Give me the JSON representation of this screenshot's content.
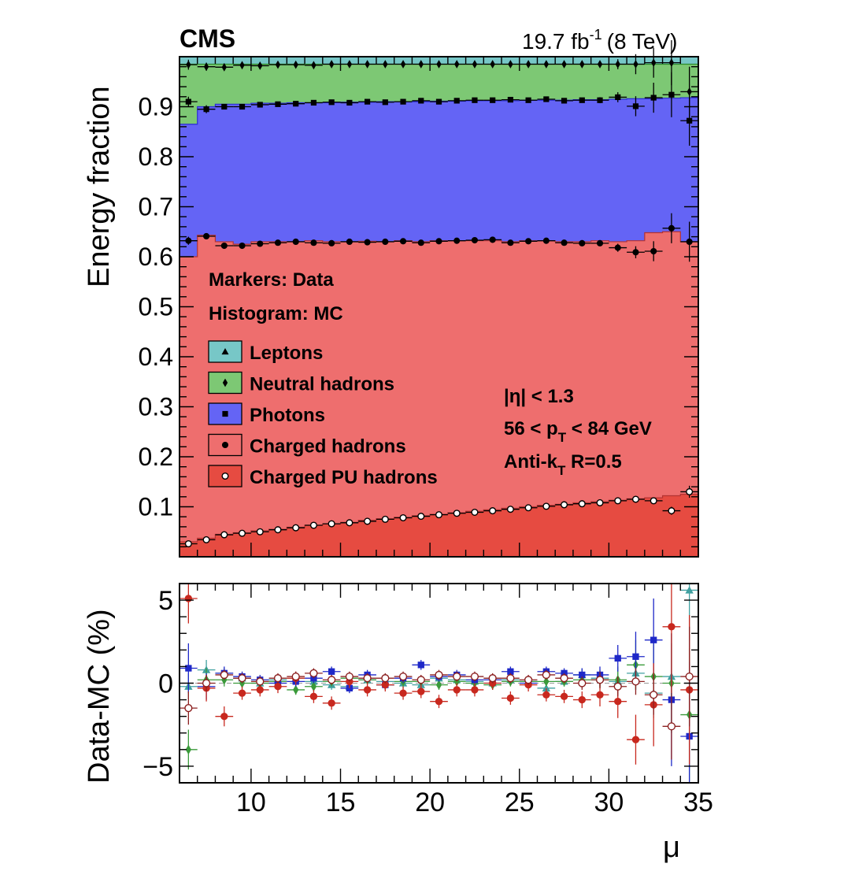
{
  "header": {
    "experiment": "CMS",
    "lumi": "19.7 fb",
    "lumi_exp": "-1",
    "energy": "(8 TeV)"
  },
  "annotations": {
    "markers": "Markers: Data",
    "histogram": "Histogram: MC",
    "eta_cut": "|η| < 1.3",
    "pt_cut_a": "56 < p",
    "pt_cut_sub": "T",
    "pt_cut_b": " < 84 GeV",
    "algo_a": "Anti-k",
    "algo_sub": "T",
    "algo_b": " R=0.5"
  },
  "legend": [
    {
      "label": "Leptons",
      "color": "#77C7C7",
      "marker": "triangle"
    },
    {
      "label": "Neutral hadrons",
      "color": "#7DC874",
      "marker": "diamond"
    },
    {
      "label": "Photons",
      "color": "#6464F5",
      "marker": "square"
    },
    {
      "label": "Charged hadrons",
      "color": "#EE6E6E",
      "marker": "circle"
    },
    {
      "label": "Charged PU hadrons",
      "color": "#E64B41",
      "marker": "open-circle"
    }
  ],
  "chart_data": [
    {
      "type": "area",
      "title": "",
      "xlabel": "",
      "ylabel": "Energy fraction",
      "xlim": [
        6,
        35
      ],
      "ylim": [
        0,
        1
      ],
      "yticks": [
        "0.1",
        "0.2",
        "0.3",
        "0.4",
        "0.5",
        "0.6",
        "0.7",
        "0.8",
        "0.9"
      ],
      "x": [
        6.5,
        7.5,
        8.5,
        9.5,
        10.5,
        11.5,
        12.5,
        13.5,
        14.5,
        15.5,
        16.5,
        17.5,
        18.5,
        19.5,
        20.5,
        21.5,
        22.5,
        23.5,
        24.5,
        25.5,
        26.5,
        27.5,
        28.5,
        29.5,
        30.5,
        31.5,
        32.5,
        33.5,
        34.5
      ],
      "series": [
        {
          "name": "Charged PU hadrons",
          "color": "#E64B41",
          "mc": [
            0.03,
            0.037,
            0.045,
            0.048,
            0.052,
            0.055,
            0.059,
            0.063,
            0.066,
            0.069,
            0.073,
            0.076,
            0.079,
            0.082,
            0.085,
            0.088,
            0.091,
            0.094,
            0.097,
            0.1,
            0.103,
            0.105,
            0.108,
            0.11,
            0.113,
            0.116,
            0.118,
            0.122,
            0.125
          ],
          "data": [
            0.026,
            0.034,
            0.044,
            0.047,
            0.05,
            0.054,
            0.058,
            0.063,
            0.066,
            0.068,
            0.071,
            0.075,
            0.078,
            0.081,
            0.084,
            0.087,
            0.089,
            0.092,
            0.095,
            0.098,
            0.101,
            0.104,
            0.106,
            0.108,
            0.112,
            0.115,
            0.112,
            0.092,
            0.13
          ],
          "err": [
            0.004,
            0.003,
            0.002,
            0.002,
            0.002,
            0.002,
            0.002,
            0.002,
            0.002,
            0.002,
            0.002,
            0.002,
            0.002,
            0.002,
            0.002,
            0.002,
            0.002,
            0.002,
            0.002,
            0.002,
            0.002,
            0.002,
            0.002,
            0.002,
            0.003,
            0.003,
            0.004,
            0.008,
            0.012
          ]
        },
        {
          "name": "Charged hadrons",
          "color": "#EE6E6E",
          "mc": [
            0.6,
            0.643,
            0.63,
            0.625,
            0.63,
            0.63,
            0.63,
            0.632,
            0.63,
            0.63,
            0.631,
            0.63,
            0.632,
            0.63,
            0.632,
            0.632,
            0.632,
            0.632,
            0.63,
            0.632,
            0.632,
            0.63,
            0.63,
            0.632,
            0.63,
            0.632,
            0.648,
            0.65,
            0.63
          ],
          "data": [
            0.632,
            0.641,
            0.622,
            0.622,
            0.626,
            0.628,
            0.63,
            0.628,
            0.627,
            0.63,
            0.629,
            0.63,
            0.631,
            0.628,
            0.631,
            0.632,
            0.633,
            0.634,
            0.628,
            0.631,
            0.632,
            0.628,
            0.627,
            0.627,
            0.618,
            0.609,
            0.611,
            0.657,
            0.63
          ],
          "err": [
            0.008,
            0.006,
            0.004,
            0.003,
            0.003,
            0.003,
            0.003,
            0.003,
            0.003,
            0.003,
            0.003,
            0.003,
            0.003,
            0.003,
            0.003,
            0.003,
            0.003,
            0.003,
            0.003,
            0.003,
            0.003,
            0.003,
            0.004,
            0.005,
            0.008,
            0.012,
            0.02,
            0.03,
            0.04
          ]
        },
        {
          "name": "Photons",
          "color": "#6464F5",
          "mc": [
            0.865,
            0.9,
            0.905,
            0.905,
            0.907,
            0.907,
            0.908,
            0.908,
            0.908,
            0.909,
            0.909,
            0.91,
            0.91,
            0.91,
            0.911,
            0.911,
            0.912,
            0.912,
            0.912,
            0.913,
            0.913,
            0.913,
            0.914,
            0.914,
            0.915,
            0.916,
            0.916,
            0.917,
            0.918
          ],
          "data": [
            0.91,
            0.895,
            0.9,
            0.9,
            0.904,
            0.905,
            0.906,
            0.908,
            0.909,
            0.908,
            0.91,
            0.909,
            0.91,
            0.912,
            0.91,
            0.912,
            0.913,
            0.913,
            0.914,
            0.913,
            0.915,
            0.912,
            0.913,
            0.913,
            0.919,
            0.901,
            0.918,
            0.924,
            0.872
          ],
          "err": [
            0.01,
            0.008,
            0.004,
            0.003,
            0.003,
            0.003,
            0.003,
            0.003,
            0.003,
            0.003,
            0.003,
            0.003,
            0.003,
            0.003,
            0.003,
            0.003,
            0.003,
            0.003,
            0.003,
            0.003,
            0.003,
            0.003,
            0.004,
            0.006,
            0.01,
            0.02,
            0.03,
            0.045,
            0.05
          ]
        },
        {
          "name": "Neutral hadrons",
          "color": "#7DC874",
          "mc": [
            0.985,
            0.985,
            0.985,
            0.985,
            0.985,
            0.985,
            0.985,
            0.985,
            0.985,
            0.985,
            0.985,
            0.985,
            0.985,
            0.985,
            0.985,
            0.985,
            0.985,
            0.985,
            0.985,
            0.985,
            0.985,
            0.985,
            0.985,
            0.985,
            0.985,
            0.985,
            0.985,
            0.985,
            0.985
          ],
          "data": [
            0.984,
            0.98,
            0.979,
            0.983,
            0.982,
            0.984,
            0.984,
            0.983,
            0.985,
            0.985,
            0.985,
            0.985,
            0.985,
            0.985,
            0.985,
            0.985,
            0.985,
            0.985,
            0.985,
            0.985,
            0.985,
            0.985,
            0.985,
            0.985,
            0.985,
            0.985,
            0.988,
            0.988,
            0.93
          ],
          "err": [
            0.01,
            0.008,
            0.004,
            0.003,
            0.003,
            0.003,
            0.003,
            0.003,
            0.003,
            0.003,
            0.003,
            0.003,
            0.003,
            0.003,
            0.003,
            0.003,
            0.003,
            0.003,
            0.003,
            0.003,
            0.003,
            0.003,
            0.004,
            0.006,
            0.01,
            0.02,
            0.03,
            0.045,
            0.05
          ]
        },
        {
          "name": "Leptons",
          "color": "#77C7C7",
          "mc": [
            1.0,
            1.0,
            1.0,
            1.0,
            1.0,
            1.0,
            1.0,
            1.0,
            1.0,
            1.0,
            1.0,
            1.0,
            1.0,
            1.0,
            1.0,
            1.0,
            1.0,
            1.0,
            1.0,
            1.0,
            1.0,
            1.0,
            1.0,
            1.0,
            1.0,
            1.0,
            1.0,
            1.0,
            1.0
          ]
        }
      ]
    },
    {
      "type": "scatter",
      "title": "",
      "xlabel": "μ",
      "ylabel": "Data-MC (%)",
      "xlim": [
        6,
        35
      ],
      "ylim": [
        -6,
        6
      ],
      "xticks": [
        "10",
        "15",
        "20",
        "25",
        "30",
        "35"
      ],
      "yticks": [
        "−5",
        "0",
        "5"
      ],
      "x": [
        6.5,
        7.5,
        8.5,
        9.5,
        10.5,
        11.5,
        12.5,
        13.5,
        14.5,
        15.5,
        16.5,
        17.5,
        18.5,
        19.5,
        20.5,
        21.5,
        22.5,
        23.5,
        24.5,
        25.5,
        26.5,
        27.5,
        28.5,
        29.5,
        30.5,
        31.5,
        32.5,
        33.5,
        34.5
      ],
      "series": [
        {
          "name": "Leptons",
          "color": "#40A0A0",
          "marker": "triangle",
          "values": [
            -0.2,
            0.8,
            0.6,
            0.3,
            0.0,
            0.2,
            0.3,
            0.1,
            -0.1,
            -0.2,
            0.2,
            0.1,
            0.0,
            -0.1,
            0.3,
            0.2,
            0.1,
            0.0,
            0.2,
            0.1,
            -0.3,
            0.1,
            0.5,
            0.3,
            0.1,
            0.6,
            -0.6,
            0.4,
            5.6
          ],
          "err": [
            0.8,
            0.6,
            0.3,
            0.3,
            0.3,
            0.3,
            0.3,
            0.3,
            0.3,
            0.3,
            0.3,
            0.3,
            0.3,
            0.3,
            0.3,
            0.3,
            0.3,
            0.3,
            0.3,
            0.3,
            0.3,
            0.3,
            0.4,
            0.5,
            0.8,
            1.0,
            1.5,
            2.0,
            3.0
          ]
        },
        {
          "name": "Neutral hadrons",
          "color": "#3A9A3A",
          "marker": "diamond",
          "values": [
            -4.0,
            0.2,
            0.2,
            0.0,
            0.0,
            0.1,
            -0.4,
            -0.2,
            0.1,
            0.3,
            0.2,
            -0.1,
            0.1,
            0.1,
            -0.1,
            0.1,
            0.0,
            -0.1,
            0.1,
            0.1,
            0.1,
            0.1,
            0.2,
            0.2,
            0.2,
            1.1,
            0.4,
            0.0,
            -1.9
          ],
          "err": [
            1.2,
            0.7,
            0.4,
            0.3,
            0.3,
            0.3,
            0.3,
            0.3,
            0.3,
            0.3,
            0.3,
            0.3,
            0.3,
            0.3,
            0.3,
            0.3,
            0.3,
            0.3,
            0.3,
            0.3,
            0.3,
            0.3,
            0.4,
            0.5,
            0.8,
            1.5,
            2.0,
            3.0,
            4.0
          ]
        },
        {
          "name": "Photons",
          "color": "#1E28C8",
          "marker": "square",
          "values": [
            0.9,
            -0.2,
            0.6,
            0.4,
            0.2,
            0.0,
            0.1,
            0.3,
            0.7,
            -0.3,
            0.5,
            -0.1,
            0.3,
            1.1,
            0.4,
            0.5,
            0.2,
            0.2,
            0.7,
            0.0,
            0.7,
            0.6,
            0.5,
            0.5,
            1.5,
            1.6,
            2.6,
            -1.0,
            -3.2
          ],
          "err": [
            1.5,
            0.8,
            0.4,
            0.3,
            0.3,
            0.3,
            0.3,
            0.3,
            0.3,
            0.3,
            0.3,
            0.3,
            0.3,
            0.3,
            0.3,
            0.3,
            0.3,
            0.3,
            0.3,
            0.3,
            0.3,
            0.3,
            0.4,
            0.5,
            0.8,
            1.5,
            2.5,
            4.0,
            4.5
          ]
        },
        {
          "name": "Charged hadrons",
          "color": "#C8281E",
          "marker": "circle",
          "values": [
            5.1,
            -0.3,
            -2.0,
            -0.6,
            -0.4,
            -0.2,
            0.3,
            -0.8,
            -1.2,
            0.1,
            -0.4,
            -0.1,
            -0.6,
            -0.5,
            -1.1,
            -0.4,
            -0.4,
            0.0,
            -0.9,
            -0.1,
            -0.7,
            -0.8,
            -1.0,
            -0.7,
            -1.1,
            -3.4,
            -1.3,
            3.4,
            -0.4
          ],
          "err": [
            1.5,
            0.8,
            0.6,
            0.4,
            0.4,
            0.4,
            0.4,
            0.4,
            0.4,
            0.4,
            0.4,
            0.4,
            0.4,
            0.4,
            0.4,
            0.4,
            0.4,
            0.4,
            0.4,
            0.4,
            0.4,
            0.4,
            0.5,
            0.7,
            1.0,
            1.5,
            2.5,
            4.0,
            4.5
          ]
        },
        {
          "name": "Charged PU hadrons",
          "color": "#8C2020",
          "marker": "open-circle",
          "values": [
            -1.5,
            0.0,
            0.5,
            0.3,
            0.1,
            0.3,
            0.4,
            0.6,
            0.2,
            0.4,
            0.3,
            0.3,
            0.4,
            0.2,
            0.5,
            0.4,
            0.4,
            0.3,
            0.3,
            0.2,
            0.5,
            0.3,
            0.0,
            0.2,
            -0.2,
            0.1,
            -0.7,
            -2.6,
            0.4
          ],
          "err": [
            1.0,
            0.5,
            0.3,
            0.3,
            0.3,
            0.3,
            0.3,
            0.3,
            0.3,
            0.3,
            0.3,
            0.3,
            0.3,
            0.3,
            0.3,
            0.3,
            0.3,
            0.3,
            0.3,
            0.3,
            0.3,
            0.3,
            0.4,
            0.5,
            0.6,
            0.8,
            1.2,
            2.0,
            3.0
          ]
        }
      ]
    }
  ]
}
